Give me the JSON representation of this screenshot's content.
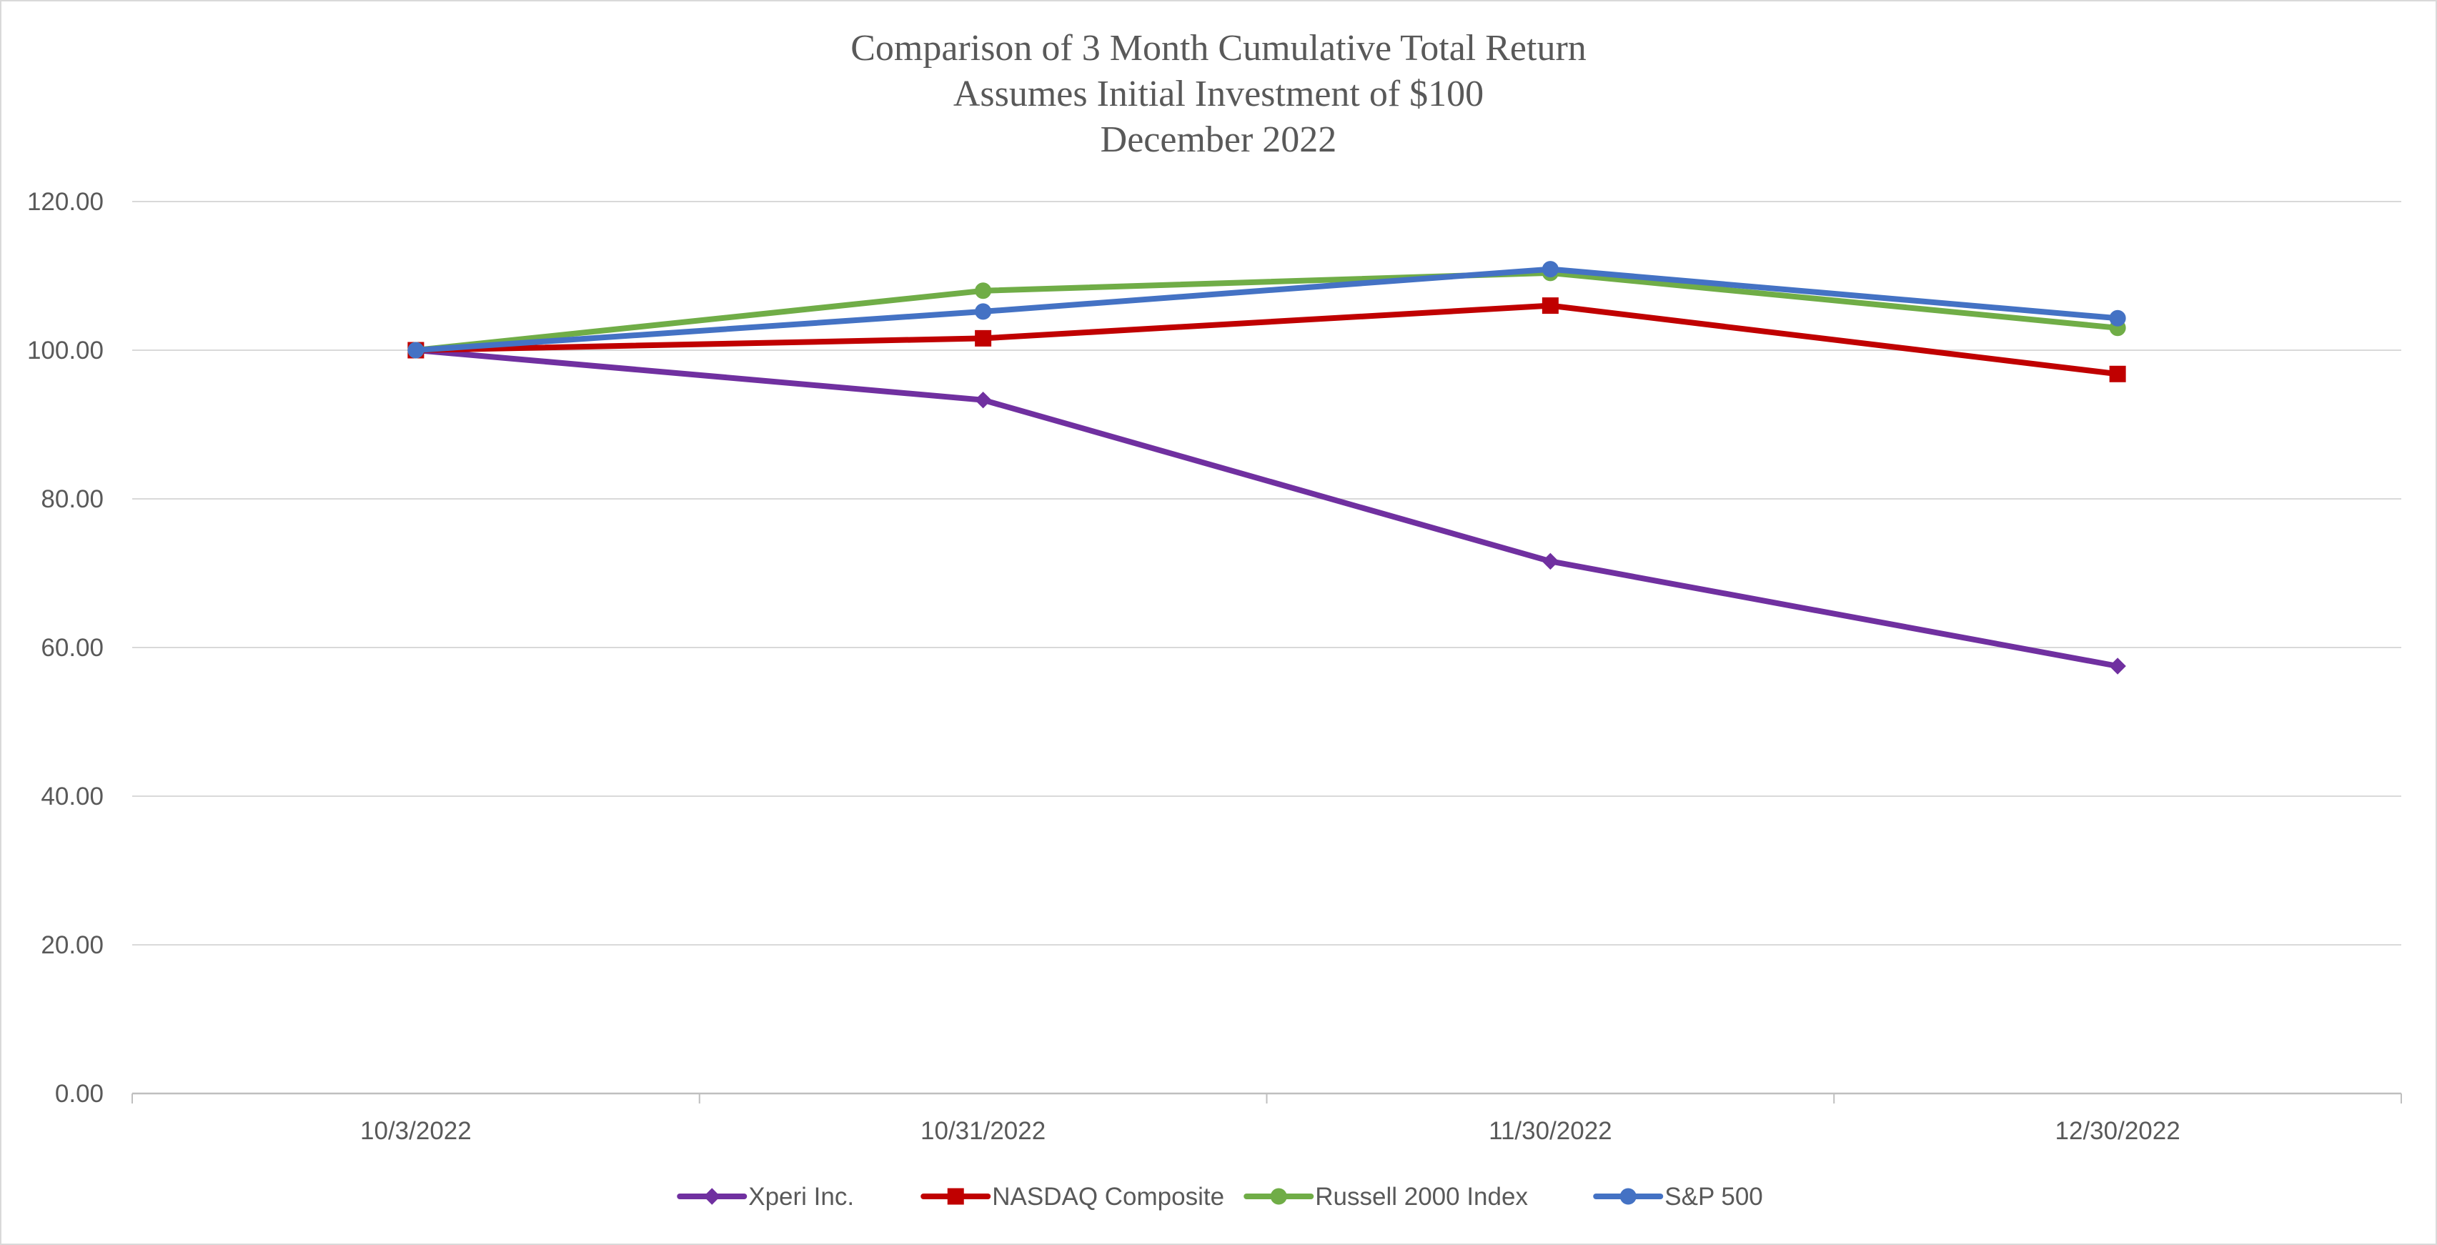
{
  "chart_data": {
    "type": "line",
    "title_lines": [
      "Comparison of 3 Month Cumulative Total Return",
      "Assumes Initial Investment of $100",
      "December 2022"
    ],
    "xlabel": "",
    "ylabel": "",
    "x": [
      "10/3/2022",
      "10/31/2022",
      "11/30/2022",
      "12/30/2022"
    ],
    "ylim": [
      0,
      120
    ],
    "yticks": [
      "0.00",
      "20.00",
      "40.00",
      "60.00",
      "80.00",
      "100.00",
      "120.00"
    ],
    "grid": true,
    "legend_position": "bottom",
    "series": [
      {
        "name": "Xperi Inc.",
        "color": "#7030a0",
        "marker": "diamond",
        "values": [
          100.0,
          93.3,
          71.6,
          57.5
        ]
      },
      {
        "name": "NASDAQ Composite",
        "color": "#c00000",
        "marker": "square",
        "values": [
          100.0,
          101.6,
          106.0,
          96.8
        ]
      },
      {
        "name": "Russell 2000 Index",
        "color": "#70ad47",
        "marker": "circle",
        "values": [
          100.0,
          108.0,
          110.4,
          103.0
        ]
      },
      {
        "name": "S&P 500",
        "color": "#4472c4",
        "marker": "circle",
        "values": [
          100.0,
          105.2,
          110.9,
          104.3
        ]
      }
    ]
  }
}
